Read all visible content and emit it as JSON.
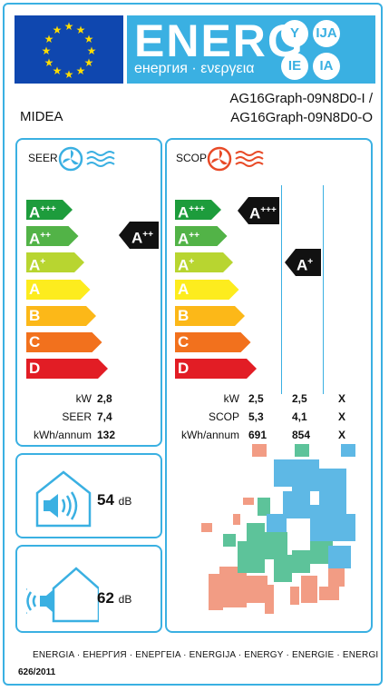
{
  "header": {
    "energy_word": "ENERG",
    "energy_sub": "енергия · ενεργεια",
    "lang_badges": [
      "Y",
      "IJA",
      "IE",
      "IA"
    ]
  },
  "supplier": "MIDEA",
  "model": {
    "line1": "AG16Graph-09N8D0-I /",
    "line2": "AG16Graph-09N8D0-O"
  },
  "seer_panel": {
    "title": "SEER",
    "classes": [
      {
        "letter": "A",
        "plus": "+++",
        "color": "#1d9c3c"
      },
      {
        "letter": "A",
        "plus": "++",
        "color": "#52b347"
      },
      {
        "letter": "A",
        "plus": "+",
        "color": "#b8d530"
      },
      {
        "letter": "A",
        "plus": "",
        "color": "#fdec1e"
      },
      {
        "letter": "B",
        "plus": "",
        "color": "#fcb818"
      },
      {
        "letter": "C",
        "plus": "",
        "color": "#f2711d"
      },
      {
        "letter": "D",
        "plus": "",
        "color": "#e21d25"
      }
    ],
    "rating": {
      "letter": "A",
      "plus": "++"
    },
    "rows": [
      {
        "label": "kW",
        "value": "2,8"
      },
      {
        "label": "SEER",
        "value": "7,4"
      },
      {
        "label": "kWh/annum",
        "value": "132"
      }
    ]
  },
  "scop_panel": {
    "title": "SCOP",
    "ratings": [
      {
        "letter": "A",
        "plus": "+++"
      },
      {
        "letter": "A",
        "plus": "+"
      }
    ],
    "row_labels": [
      "kW",
      "SCOP",
      "kWh/annum"
    ],
    "columns": [
      {
        "values": [
          "2,5",
          "5,3",
          "691"
        ],
        "color": "#f29c84"
      },
      {
        "values": [
          "2,5",
          "4,1",
          "854"
        ],
        "color": "#5dc39a"
      },
      {
        "values": [
          "X",
          "X",
          "X"
        ],
        "color": "#5eb8e5"
      }
    ]
  },
  "noise": {
    "indoor": {
      "value": "54",
      "unit": "dB"
    },
    "outdoor": {
      "value": "62",
      "unit": "dB"
    }
  },
  "footer": {
    "languages": "ENERGIA · ЕНЕРГИЯ · ΕΝΕΡΓΕΙΑ · ENERGIJA · ENERGY · ENERGIE · ENERGI",
    "regulation": "626/2011"
  },
  "colors": {
    "accent": "#3ab0e2",
    "eu_blue": "#0f47af",
    "black_arrow": "#111111"
  }
}
